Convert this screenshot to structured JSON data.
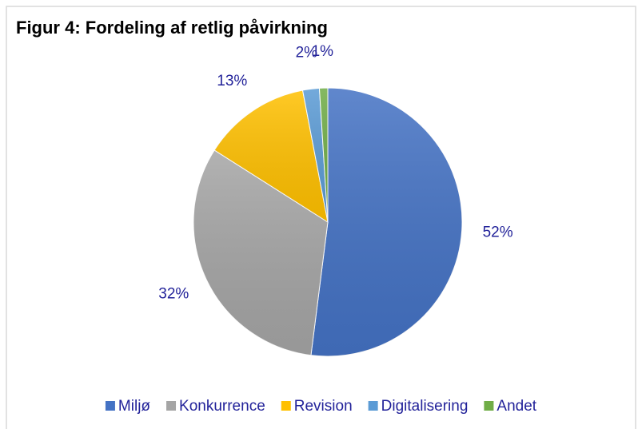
{
  "chart_data": {
    "type": "pie",
    "title": "Figur 4: Fordeling af retlig påvirkning",
    "categories": [
      "Miljø",
      "Konkurrence",
      "Revision",
      "Digitalisering",
      "Andet"
    ],
    "values": [
      52,
      32,
      13,
      2,
      1
    ],
    "value_labels": [
      "52%",
      "32%",
      "13%",
      "2%",
      "1%"
    ],
    "colors": [
      "#4472c4",
      "#a5a5a5",
      "#ffc000",
      "#5b9bd5",
      "#70ad47"
    ],
    "legend": "bottom"
  }
}
